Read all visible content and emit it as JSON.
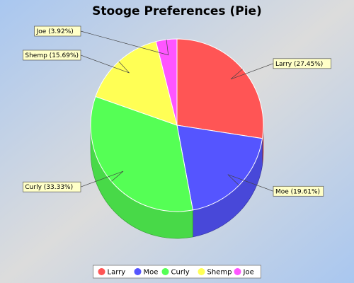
{
  "chart_data": {
    "type": "pie",
    "style": "3d",
    "title": "Stooge Preferences (Pie)",
    "categories": [
      "Larry",
      "Moe",
      "Curly",
      "Shemp",
      "Joe"
    ],
    "values": [
      27.45,
      19.61,
      33.33,
      15.69,
      3.92
    ],
    "labels": [
      "Larry (27.45%)",
      "Moe (19.61%)",
      "Curly (33.33%)",
      "Shemp (15.69%)",
      "Joe (3.92%)"
    ],
    "colors": [
      "#FF5555",
      "#5555FF",
      "#55FF55",
      "#FFFF55",
      "#FF55FF"
    ],
    "legend": "bottom"
  },
  "background": {
    "from": "#A9C7F0",
    "mid": "#DCDCDC",
    "to": "#A9C7F0"
  },
  "label_box_color": "#FFFFC8"
}
